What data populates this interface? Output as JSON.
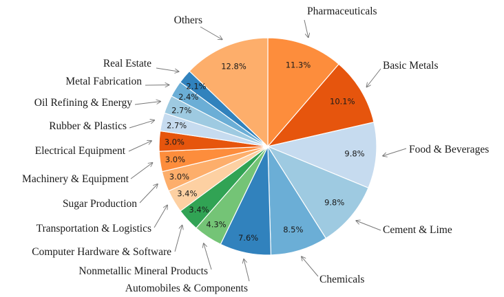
{
  "chart_data": {
    "type": "pie",
    "start": "12 o'clock, clockwise",
    "slices": [
      {
        "label": "Pharmaceuticals",
        "pct_label": "11.3%",
        "value": 11.3,
        "color": "#fd8d3c"
      },
      {
        "label": "Basic Metals",
        "pct_label": "10.1%",
        "value": 10.1,
        "color": "#e6550d"
      },
      {
        "label": "Food & Beverages",
        "pct_label": "9.8%",
        "value": 9.8,
        "color": "#c6dbef"
      },
      {
        "label": "Cement & Lime",
        "pct_label": "9.8%",
        "value": 9.8,
        "color": "#9ecae1"
      },
      {
        "label": "Chemicals",
        "pct_label": "8.5%",
        "value": 8.5,
        "color": "#6baed6"
      },
      {
        "label": "Automobiles & Components",
        "pct_label": "7.6%",
        "value": 7.6,
        "color": "#3182bd"
      },
      {
        "label": "Nonmetallic Mineral Products",
        "pct_label": "4.3%",
        "value": 4.3,
        "color": "#74c476"
      },
      {
        "label": "Computer Hardware & Software",
        "pct_label": "3.4%",
        "value": 3.4,
        "color": "#31a354"
      },
      {
        "label": "Transportation & Logistics",
        "pct_label": "3.4%",
        "value": 3.4,
        "color": "#fdd0a2"
      },
      {
        "label": "Sugar Production",
        "pct_label": "3.0%",
        "value": 3.0,
        "color": "#fdae6b"
      },
      {
        "label": "Machinery & Equipment",
        "pct_label": "3.0%",
        "value": 3.0,
        "color": "#fd8d3c"
      },
      {
        "label": "Electrical Equipment",
        "pct_label": "3.0%",
        "value": 3.0,
        "color": "#e6550d"
      },
      {
        "label": "Rubber & Plastics",
        "pct_label": "2.7%",
        "value": 2.7,
        "color": "#c6dbef"
      },
      {
        "label": "Oil Refining & Energy",
        "pct_label": "2.7%",
        "value": 2.7,
        "color": "#9ecae1"
      },
      {
        "label": "Metal Fabrication",
        "pct_label": "2.4%",
        "value": 2.4,
        "color": "#6baed6"
      },
      {
        "label": "Real Estate",
        "pct_label": "2.1%",
        "value": 2.1,
        "color": "#3182bd"
      },
      {
        "label": "Others",
        "pct_label": "12.8%",
        "value": 12.8,
        "color": "#fdae6b"
      }
    ]
  }
}
